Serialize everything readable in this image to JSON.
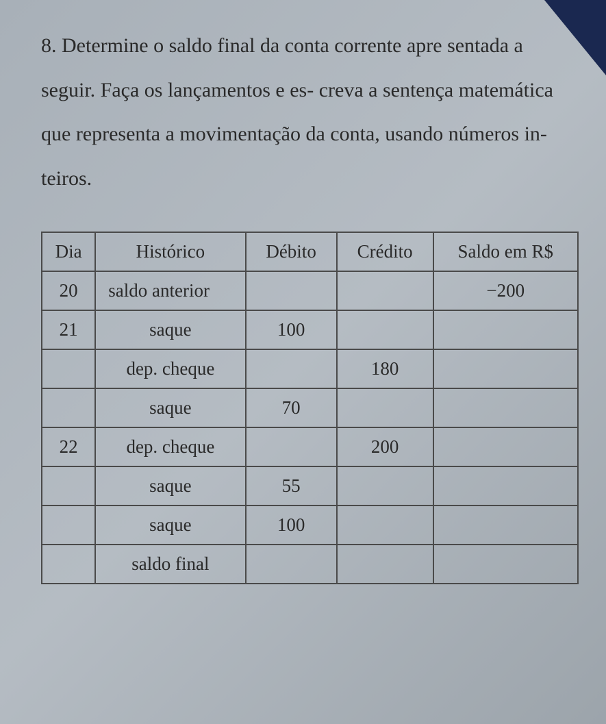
{
  "question": {
    "number": "8.",
    "text": "Determine o saldo final da conta corrente apre sentada a seguir. Faça os lançamentos e es- creva a sentença matemática que representa a movimentação da conta, usando números in- teiros."
  },
  "table": {
    "headers": {
      "dia": "Dia",
      "historico": "Histórico",
      "debito": "Débito",
      "credito": "Crédito",
      "saldo": "Saldo em R$"
    },
    "rows": [
      {
        "dia": "20",
        "historico": "saldo anterior",
        "debito": "",
        "credito": "",
        "saldo": "−200",
        "align": "left"
      },
      {
        "dia": "21",
        "historico": "saque",
        "debito": "100",
        "credito": "",
        "saldo": "",
        "align": "center"
      },
      {
        "dia": "",
        "historico": "dep. cheque",
        "debito": "",
        "credito": "180",
        "saldo": "",
        "align": "center"
      },
      {
        "dia": "",
        "historico": "saque",
        "debito": "70",
        "credito": "",
        "saldo": "",
        "align": "center"
      },
      {
        "dia": "22",
        "historico": "dep. cheque",
        "debito": "",
        "credito": "200",
        "saldo": "",
        "align": "center"
      },
      {
        "dia": "",
        "historico": "saque",
        "debito": "55",
        "credito": "",
        "saldo": "",
        "align": "center"
      },
      {
        "dia": "",
        "historico": "saque",
        "debito": "100",
        "credito": "",
        "saldo": "",
        "align": "center"
      },
      {
        "dia": "",
        "historico": "saldo final",
        "debito": "",
        "credito": "",
        "saldo": "",
        "align": "center"
      }
    ]
  },
  "styling": {
    "background_color": "#aab2b9",
    "text_color": "#2a2a2a",
    "border_color": "#4a4a4a",
    "corner_color": "#1a2850",
    "question_fontsize": 30,
    "table_fontsize": 27,
    "line_height": 2.15
  }
}
